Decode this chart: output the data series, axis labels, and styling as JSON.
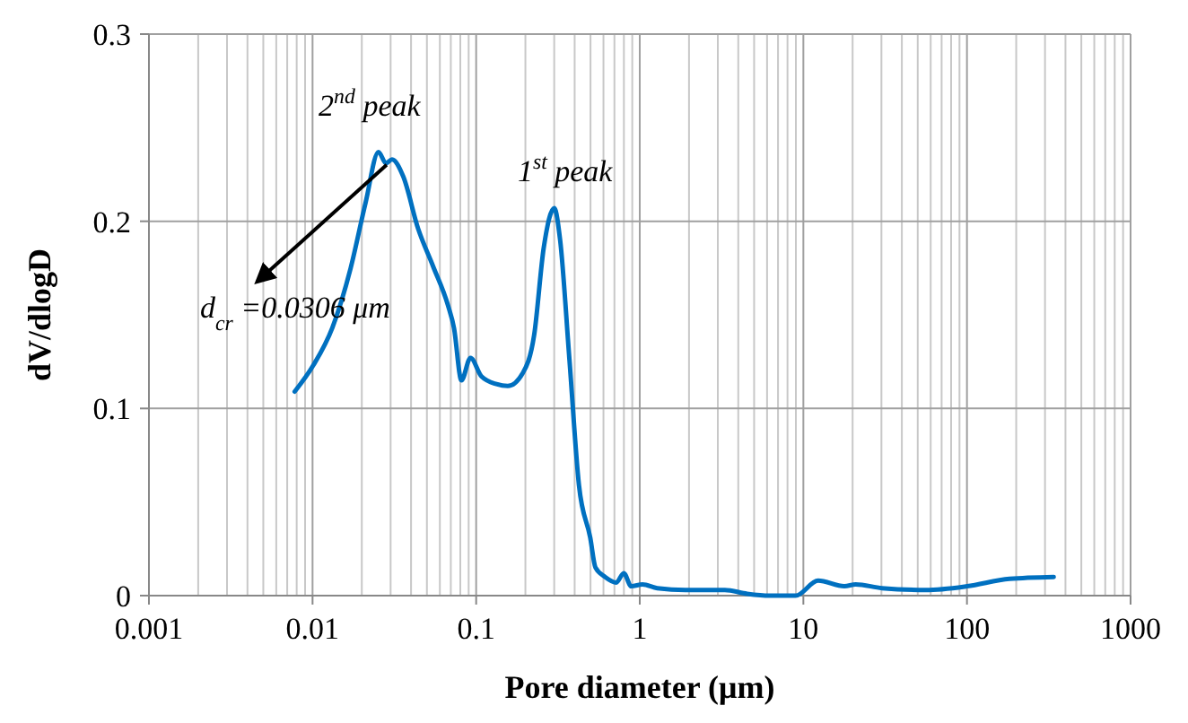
{
  "chart_data": {
    "type": "line",
    "xlabel": "Pore diameter (μm)",
    "ylabel": "dV/dlogD",
    "log": "x",
    "grid": true,
    "marker": "none",
    "line_style": "solid",
    "xlim": [
      0.001,
      1000
    ],
    "xticks": [
      0.001,
      0.01,
      0.1,
      1,
      10,
      100,
      1000
    ],
    "ylim": [
      0,
      0.3
    ],
    "yticks": [
      {
        "value": 0,
        "label": "0"
      },
      0.1,
      0.2,
      0.3
    ],
    "annotations": [
      {
        "text": "2$^{nd}$ peak",
        "x": 0.0253,
        "y": 0.237
      },
      {
        "text": "1$^{st}$ peak",
        "x": 0.3,
        "y": 0.207
      },
      {
        "text": "d$_{cr}$ =0.0306 μm",
        "x": 0.0306,
        "y": 0.233
      }
    ],
    "series": [
      {
        "color": "#0070c0",
        "x": [
          0.00778,
          0.0101,
          0.0132,
          0.0171,
          0.0211,
          0.0253,
          0.0281,
          0.0306,
          0.0358,
          0.0442,
          0.0545,
          0.0673,
          0.0732,
          0.0813,
          0.0923,
          0.108,
          0.133,
          0.156,
          0.193,
          0.226,
          0.259,
          0.3,
          0.326,
          0.371,
          0.425,
          0.498,
          0.536,
          0.614,
          0.719,
          0.798,
          0.887,
          1.04,
          1.28,
          1.95,
          3.31,
          4.53,
          6.21,
          8.97,
          12.3,
          17.8,
          20.9,
          30.2,
          56.2,
          100,
          182,
          339
        ],
        "values": [
          0.109,
          0.123,
          0.143,
          0.175,
          0.21,
          0.237,
          0.231,
          0.233,
          0.224,
          0.196,
          0.176,
          0.155,
          0.143,
          0.115,
          0.127,
          0.117,
          0.113,
          0.112,
          0.119,
          0.139,
          0.186,
          0.207,
          0.19,
          0.127,
          0.059,
          0.031,
          0.015,
          0.01,
          0.007,
          0.012,
          0.005,
          0.006,
          0.004,
          0.003,
          0.003,
          0.001,
          0,
          0,
          0.008,
          0.005,
          0.006,
          0.004,
          0.003,
          0.005,
          0.009,
          0.01
        ]
      }
    ]
  }
}
